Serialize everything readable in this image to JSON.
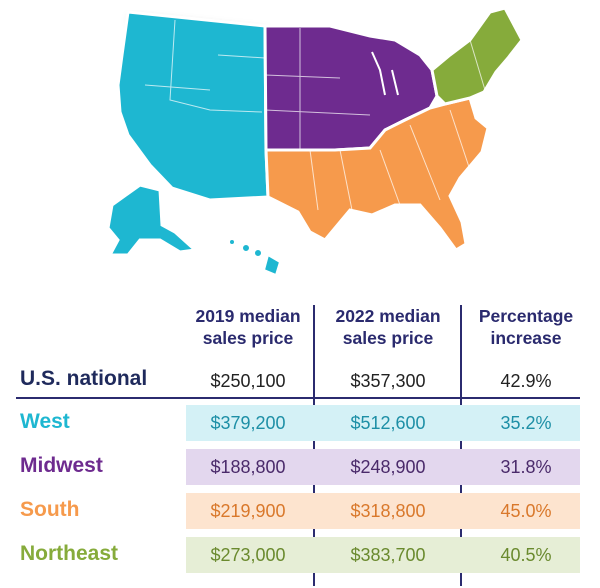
{
  "colors": {
    "west": "#1eb7d1",
    "midwest": "#6e2b8f",
    "south": "#f69a4c",
    "northeast": "#86ab3b",
    "navy": "#2b2b6f"
  },
  "table": {
    "headers": [
      {
        "line1": "2019 median",
        "line2": "sales price"
      },
      {
        "line1": "2022 median",
        "line2": "sales price"
      },
      {
        "line1": "Percentage",
        "line2": "increase"
      }
    ],
    "national": {
      "label": "U.S. national",
      "p2019": "$250,100",
      "p2022": "$357,300",
      "pct": "42.9%"
    },
    "regions": [
      {
        "label": "West",
        "p2019": "$379,200",
        "p2022": "$512,600",
        "pct": "35.2%",
        "color": "#1eb7d1",
        "band": "#d4f1f6",
        "num": "#1d8fa6"
      },
      {
        "label": "Midwest",
        "p2019": "$188,800",
        "p2022": "$248,900",
        "pct": "31.8%",
        "color": "#6e2b8f",
        "band": "#e3d7ee",
        "num": "#4a2a6a"
      },
      {
        "label": "South",
        "p2019": "$219,900",
        "p2022": "$318,800",
        "pct": "45.0%",
        "color": "#f69a4c",
        "band": "#fde4cf",
        "num": "#d9782b"
      },
      {
        "label": "Northeast",
        "p2019": "$273,000",
        "p2022": "$383,700",
        "pct": "40.5%",
        "color": "#86ab3b",
        "band": "#e6eed6",
        "num": "#6a8a2e"
      }
    ]
  }
}
